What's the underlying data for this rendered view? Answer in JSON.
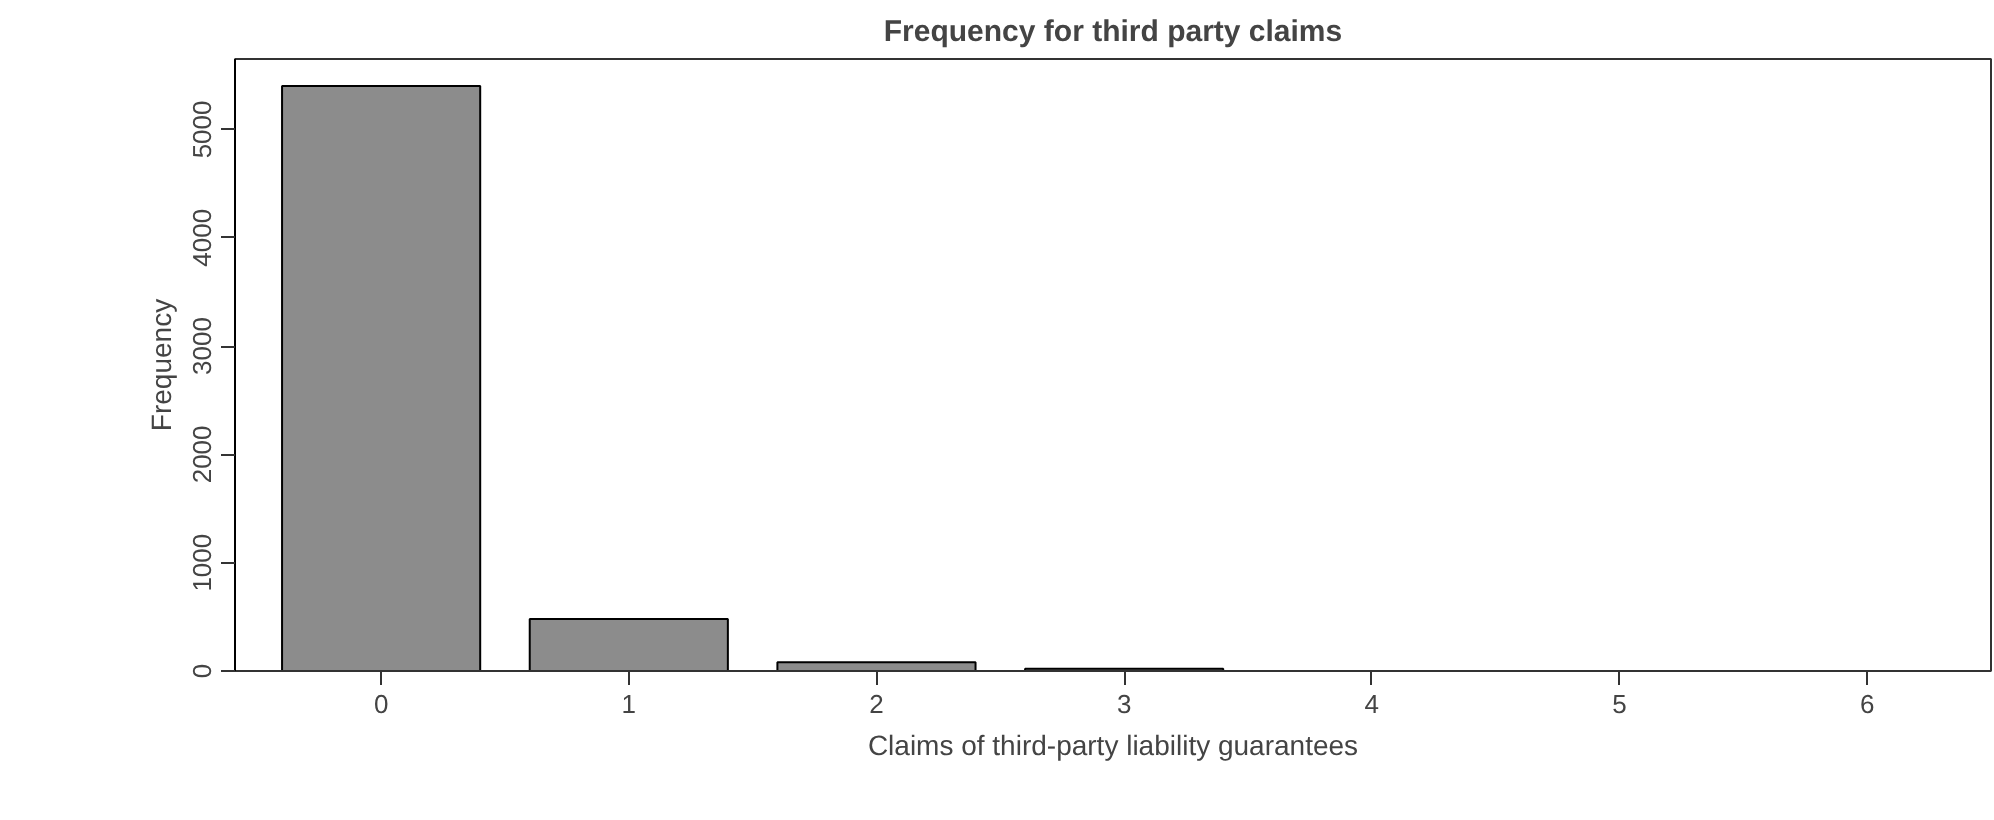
{
  "chart_data": {
    "type": "bar",
    "title": "Frequency for third party claims",
    "xlabel": "Claims of third-party liability guarantees",
    "ylabel": "Frequency",
    "categories": [
      "0",
      "1",
      "2",
      "3",
      "4",
      "5",
      "6"
    ],
    "values": [
      5400,
      480,
      80,
      20,
      0,
      0,
      0
    ],
    "color": "#8c8c8c",
    "ylim": [
      0,
      5650
    ],
    "yticks": [
      0,
      1000,
      2000,
      3000,
      4000,
      5000
    ],
    "grid": false
  }
}
